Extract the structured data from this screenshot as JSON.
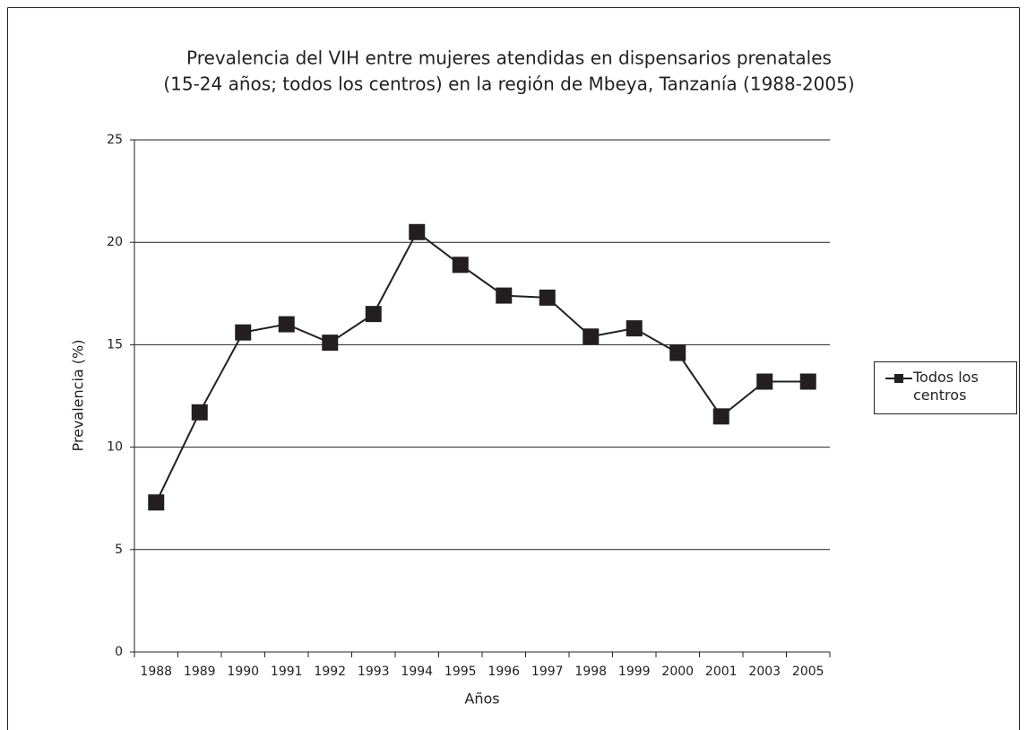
{
  "chart_data": {
    "type": "line",
    "title": [
      "Prevalencia del VIH entre mujeres atendidas en dispensarios prenatales",
      "(15-24 años; todos los centros) en la región de Mbeya, Tanzanía (1988-2005)"
    ],
    "x_label": "Años",
    "y_label": "Prevalencia (%)",
    "categories": [
      "1988",
      "1989",
      "1990",
      "1991",
      "1992",
      "1993",
      "1994",
      "1995",
      "1996",
      "1997",
      "1998",
      "1999",
      "2000",
      "2001",
      "2003",
      "2005"
    ],
    "series": [
      {
        "name": "Todos los centros",
        "color": "#231f20",
        "values": [
          7.3,
          11.7,
          15.6,
          16.0,
          15.1,
          16.5,
          20.5,
          18.9,
          17.4,
          17.3,
          15.4,
          15.8,
          14.6,
          11.5,
          13.2,
          13.2
        ]
      }
    ],
    "ylim": [
      0,
      25
    ],
    "yticks": [
      0,
      5,
      10,
      15,
      20,
      25
    ],
    "grid": true,
    "legend": "right"
  }
}
